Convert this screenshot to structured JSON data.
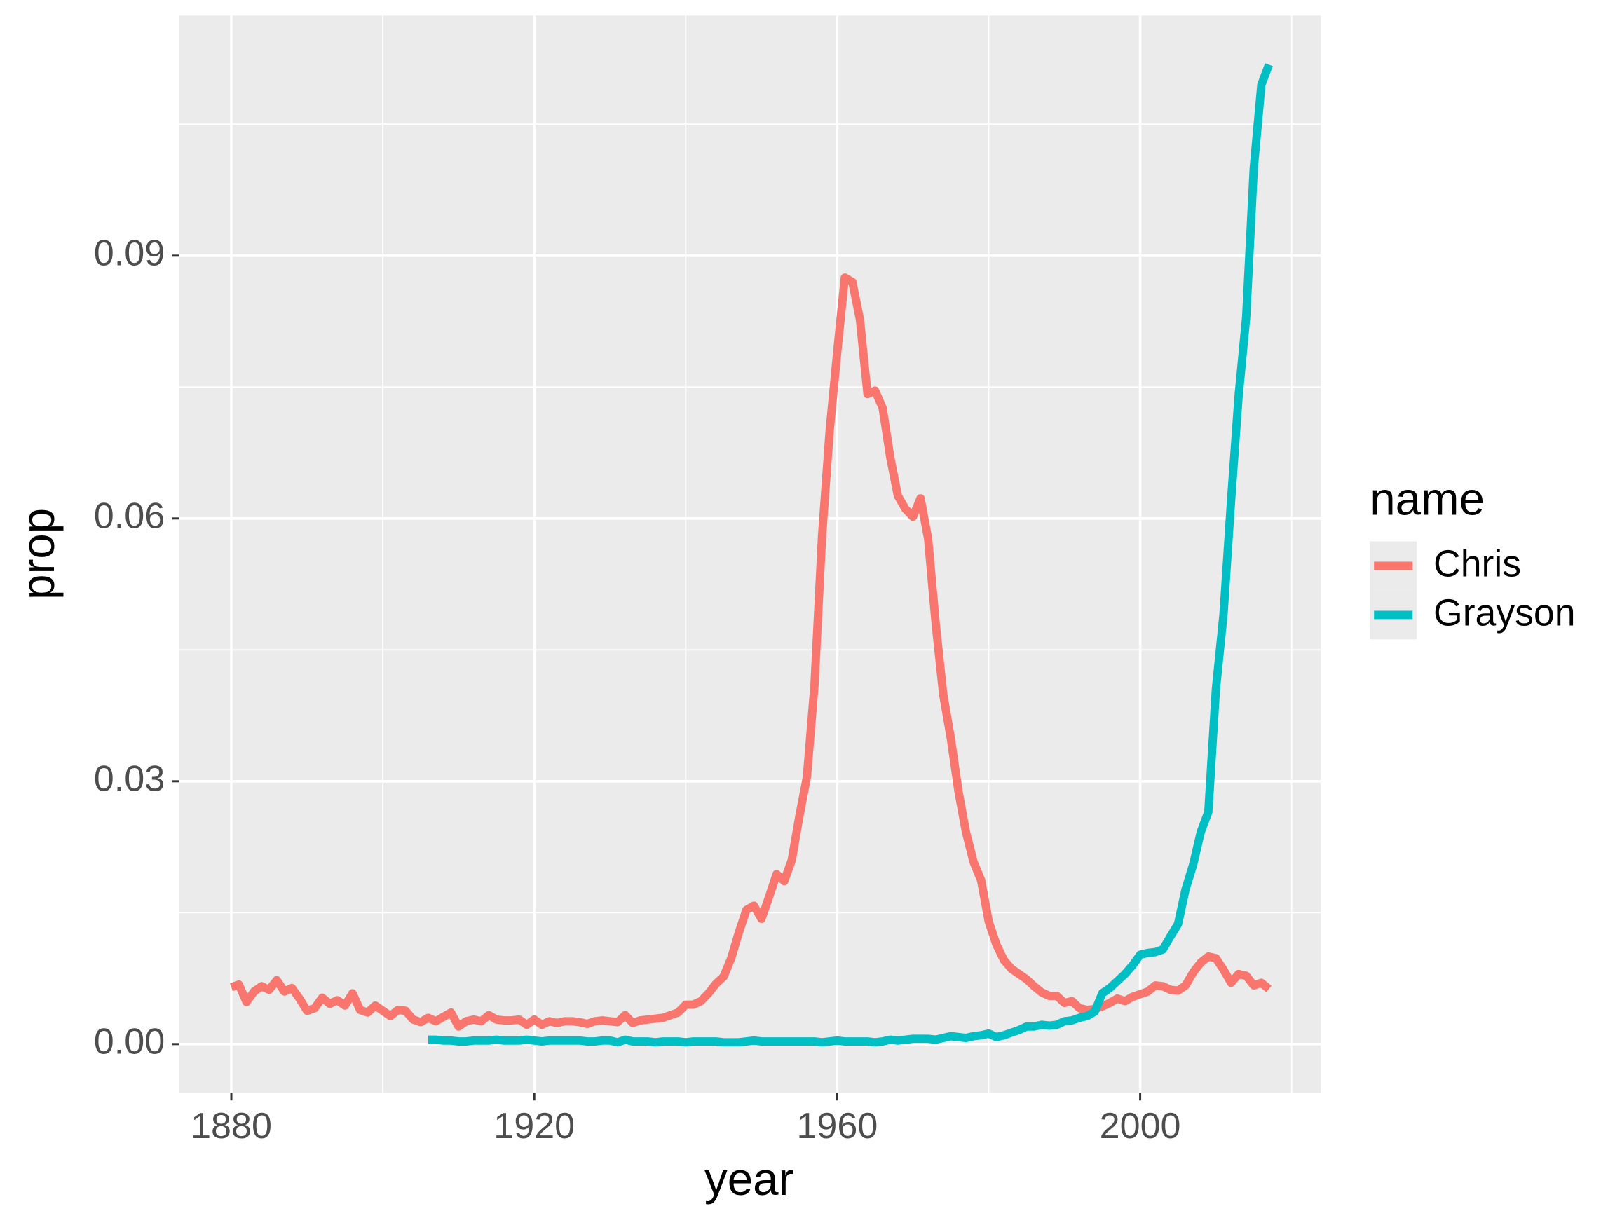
{
  "chart_data": {
    "type": "line",
    "xlabel": "year",
    "ylabel": "prop",
    "legend_title": "name",
    "legend": "right",
    "grid": true,
    "x": [
      1880,
      1881,
      1882,
      1883,
      1884,
      1885,
      1886,
      1887,
      1888,
      1889,
      1890,
      1891,
      1892,
      1893,
      1894,
      1895,
      1896,
      1897,
      1898,
      1899,
      1900,
      1901,
      1902,
      1903,
      1904,
      1905,
      1906,
      1907,
      1908,
      1909,
      1910,
      1911,
      1912,
      1913,
      1914,
      1915,
      1916,
      1917,
      1918,
      1919,
      1920,
      1921,
      1922,
      1923,
      1924,
      1925,
      1926,
      1927,
      1928,
      1929,
      1930,
      1931,
      1932,
      1933,
      1934,
      1935,
      1936,
      1937,
      1938,
      1939,
      1940,
      1941,
      1942,
      1943,
      1944,
      1945,
      1946,
      1947,
      1948,
      1949,
      1950,
      1951,
      1952,
      1953,
      1954,
      1955,
      1956,
      1957,
      1958,
      1959,
      1960,
      1961,
      1962,
      1963,
      1964,
      1965,
      1966,
      1967,
      1968,
      1969,
      1970,
      1971,
      1972,
      1973,
      1974,
      1975,
      1976,
      1977,
      1978,
      1979,
      1980,
      1981,
      1982,
      1983,
      1984,
      1985,
      1986,
      1987,
      1988,
      1989,
      1990,
      1991,
      1992,
      1993,
      1994,
      1995,
      1996,
      1997,
      1998,
      1999,
      2000,
      2001,
      2002,
      2003,
      2004,
      2005,
      2006,
      2007,
      2008,
      2009,
      2010,
      2011,
      2012,
      2013,
      2014,
      2015,
      2016,
      2017
    ],
    "series": [
      {
        "name": "Chris",
        "color": "#F8766D",
        "values": [
          0.0065,
          0.0068,
          0.0048,
          0.006,
          0.0066,
          0.0062,
          0.0073,
          0.006,
          0.0064,
          0.0052,
          0.0038,
          0.0041,
          0.0053,
          0.0046,
          0.005,
          0.0044,
          0.0058,
          0.0039,
          0.0036,
          0.0044,
          0.0038,
          0.0032,
          0.0039,
          0.0038,
          0.0028,
          0.0025,
          0.003,
          0.0026,
          0.0031,
          0.0036,
          0.002,
          0.0026,
          0.0028,
          0.0026,
          0.0033,
          0.0028,
          0.0027,
          0.0027,
          0.0028,
          0.0022,
          0.0028,
          0.0022,
          0.0026,
          0.0024,
          0.0026,
          0.0026,
          0.0025,
          0.0023,
          0.0026,
          0.0027,
          0.0026,
          0.0025,
          0.0033,
          0.0024,
          0.0027,
          0.0028,
          0.0029,
          0.003,
          0.0033,
          0.0036,
          0.0045,
          0.0045,
          0.0049,
          0.0058,
          0.0069,
          0.0077,
          0.0098,
          0.0127,
          0.0153,
          0.0158,
          0.0143,
          0.0168,
          0.0194,
          0.0186,
          0.021,
          0.026,
          0.0305,
          0.041,
          0.058,
          0.07,
          0.079,
          0.0875,
          0.087,
          0.0827,
          0.0742,
          0.0746,
          0.0726,
          0.067,
          0.0626,
          0.0611,
          0.0602,
          0.0623,
          0.0577,
          0.048,
          0.0399,
          0.0349,
          0.0289,
          0.0242,
          0.0208,
          0.0187,
          0.014,
          0.0114,
          0.0096,
          0.0086,
          0.008,
          0.0074,
          0.0066,
          0.0059,
          0.0055,
          0.0055,
          0.0047,
          0.0049,
          0.0041,
          0.0039,
          0.004,
          0.0043,
          0.0047,
          0.0052,
          0.0049,
          0.0054,
          0.0057,
          0.006,
          0.0067,
          0.0066,
          0.0062,
          0.0061,
          0.0067,
          0.0082,
          0.0093,
          0.01,
          0.0098,
          0.0085,
          0.007,
          0.008,
          0.0078,
          0.0067,
          0.007,
          0.0063
        ]
      },
      {
        "name": "Grayson",
        "color": "#00BFC4",
        "values": [
          null,
          null,
          null,
          null,
          null,
          null,
          null,
          null,
          null,
          null,
          null,
          null,
          null,
          null,
          null,
          null,
          null,
          null,
          null,
          null,
          null,
          null,
          null,
          null,
          null,
          null,
          0.0005,
          0.0005,
          0.0004,
          0.0004,
          0.0003,
          0.0003,
          0.0004,
          0.0004,
          0.0004,
          0.0005,
          0.0004,
          0.0004,
          0.0004,
          0.0005,
          0.0004,
          0.0003,
          0.0004,
          0.0004,
          0.0004,
          0.0004,
          0.0004,
          0.0003,
          0.0003,
          0.0004,
          0.0004,
          0.0002,
          0.0005,
          0.0003,
          0.0003,
          0.0003,
          0.0002,
          0.0003,
          0.0003,
          0.0003,
          0.0002,
          0.0003,
          0.0003,
          0.0003,
          0.0003,
          0.0002,
          0.0002,
          0.0002,
          0.0003,
          0.0004,
          0.0003,
          0.0003,
          0.0003,
          0.0003,
          0.0003,
          0.0003,
          0.0003,
          0.0003,
          0.0002,
          0.0003,
          0.0004,
          0.0003,
          0.0003,
          0.0003,
          0.0003,
          0.0002,
          0.0003,
          0.0005,
          0.0004,
          0.0005,
          0.0006,
          0.0006,
          0.0006,
          0.0005,
          0.0007,
          0.0009,
          0.0008,
          0.0007,
          0.0009,
          0.001,
          0.0012,
          0.0008,
          0.001,
          0.0013,
          0.0016,
          0.002,
          0.002,
          0.0022,
          0.0021,
          0.0022,
          0.0026,
          0.0027,
          0.003,
          0.0032,
          0.0037,
          0.0058,
          0.0064,
          0.0072,
          0.008,
          0.009,
          0.0102,
          0.0104,
          0.0105,
          0.0108,
          0.0123,
          0.0137,
          0.0177,
          0.0205,
          0.0242,
          0.0265,
          0.0405,
          0.049,
          0.062,
          0.074,
          0.083,
          0.1,
          0.1095,
          0.1118
        ]
      }
    ],
    "xlim": [
      1873.15,
      2023.85
    ],
    "xticks": [
      1880,
      1920,
      1960,
      2000
    ],
    "xminor": [
      1900,
      1940,
      1980,
      2020
    ],
    "ylim": [
      -0.0056,
      0.1174
    ],
    "yticks": [
      {
        "value": 0,
        "label": "0.00"
      },
      {
        "value": 0.03,
        "label": "0.03"
      },
      {
        "value": 0.06,
        "label": "0.06"
      },
      {
        "value": 0.09,
        "label": "0.09"
      }
    ],
    "yminor": [
      0.015,
      0.045,
      0.075,
      0.105
    ]
  }
}
